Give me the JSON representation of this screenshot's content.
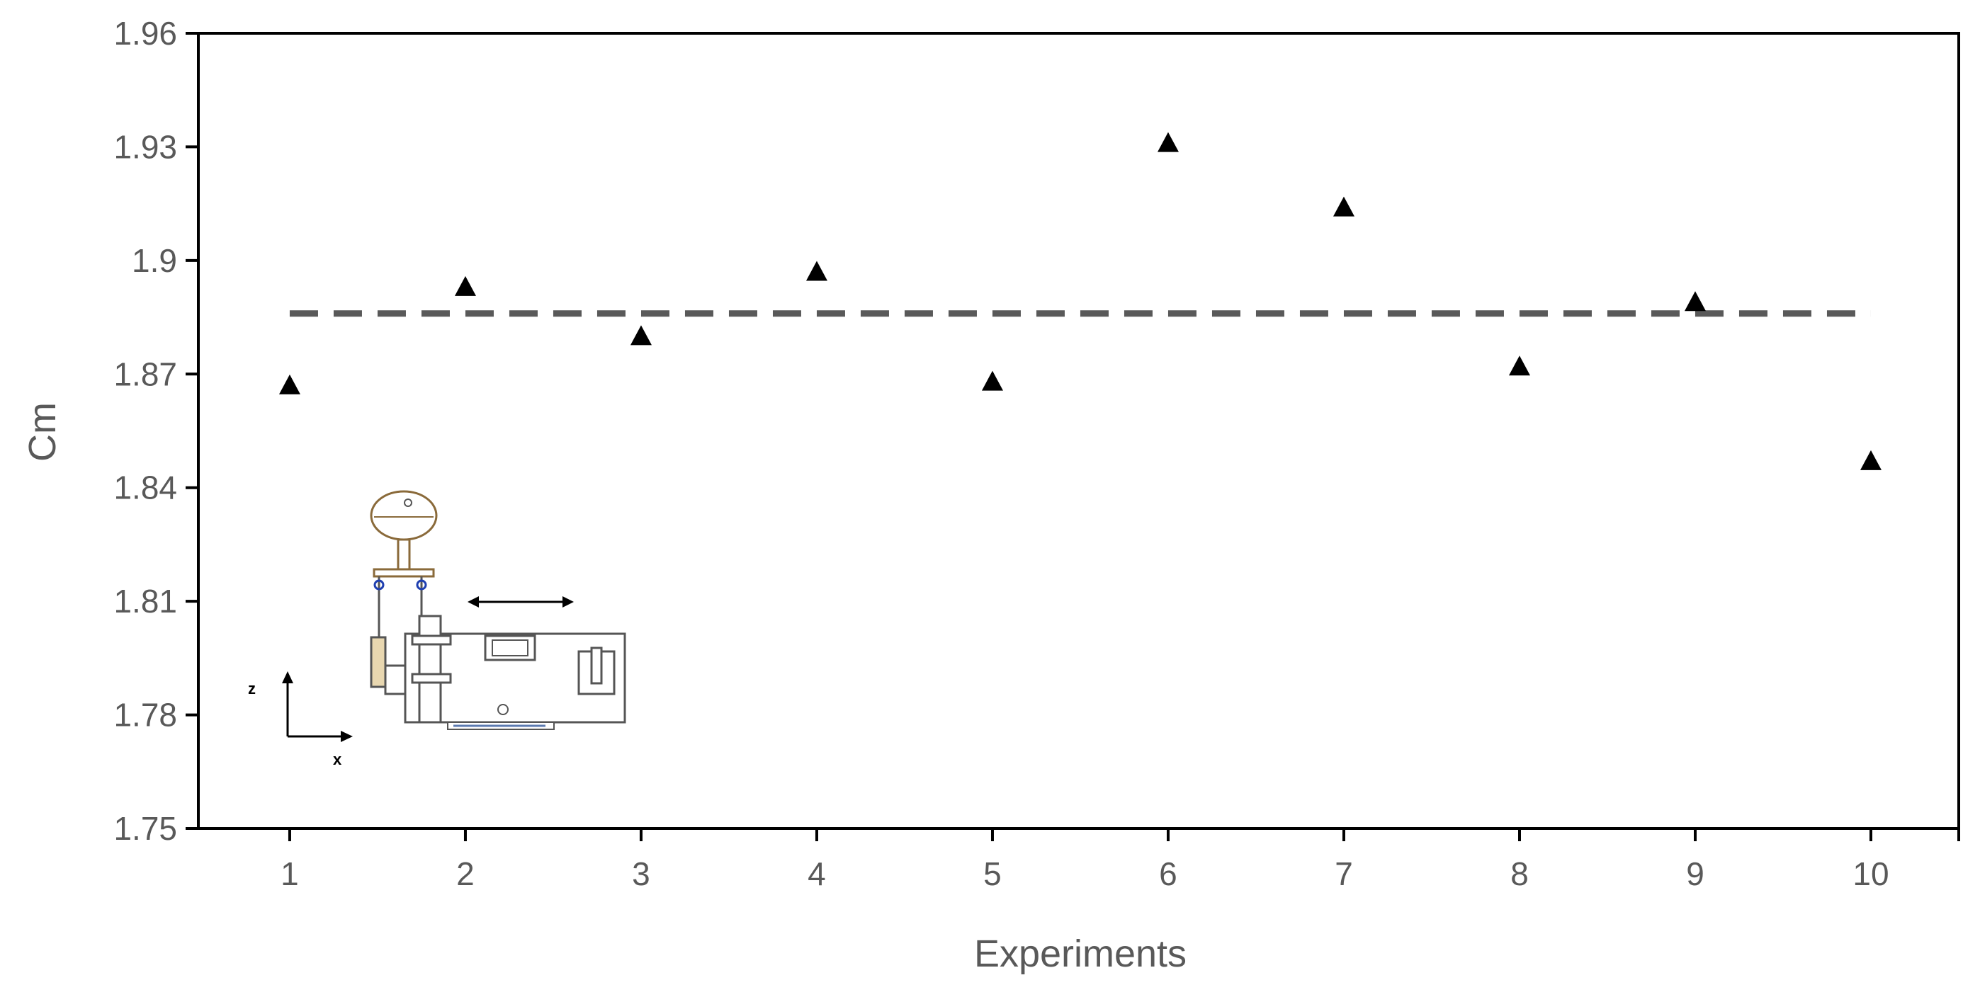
{
  "chart_data": {
    "type": "scatter",
    "xlabel": "Experiments",
    "ylabel": "Cm",
    "xlim": [
      0.48,
      10.5
    ],
    "ylim": [
      1.75,
      1.96
    ],
    "x_ticks": [
      "1",
      "2",
      "3",
      "4",
      "5",
      "6",
      "7",
      "8",
      "9",
      "10"
    ],
    "y_ticks": [
      "1.75",
      "1.78",
      "1.81",
      "1.84",
      "1.87",
      "1.9",
      "1.93",
      "1.96"
    ],
    "grid": false,
    "marker": "triangle",
    "marker_color": "#000000",
    "series": [
      {
        "x": [
          1,
          2,
          3,
          4,
          5,
          6,
          7,
          8,
          9,
          10
        ],
        "y": [
          1.867,
          1.893,
          1.88,
          1.897,
          1.868,
          1.931,
          1.914,
          1.872,
          1.889,
          1.847
        ]
      }
    ],
    "mean_line": {
      "y": 1.886,
      "x_start": 1,
      "x_end": 10,
      "style": "dashed",
      "color": "#595959"
    }
  },
  "inset": {
    "axis_z_label": "z",
    "axis_x_label": "x"
  }
}
